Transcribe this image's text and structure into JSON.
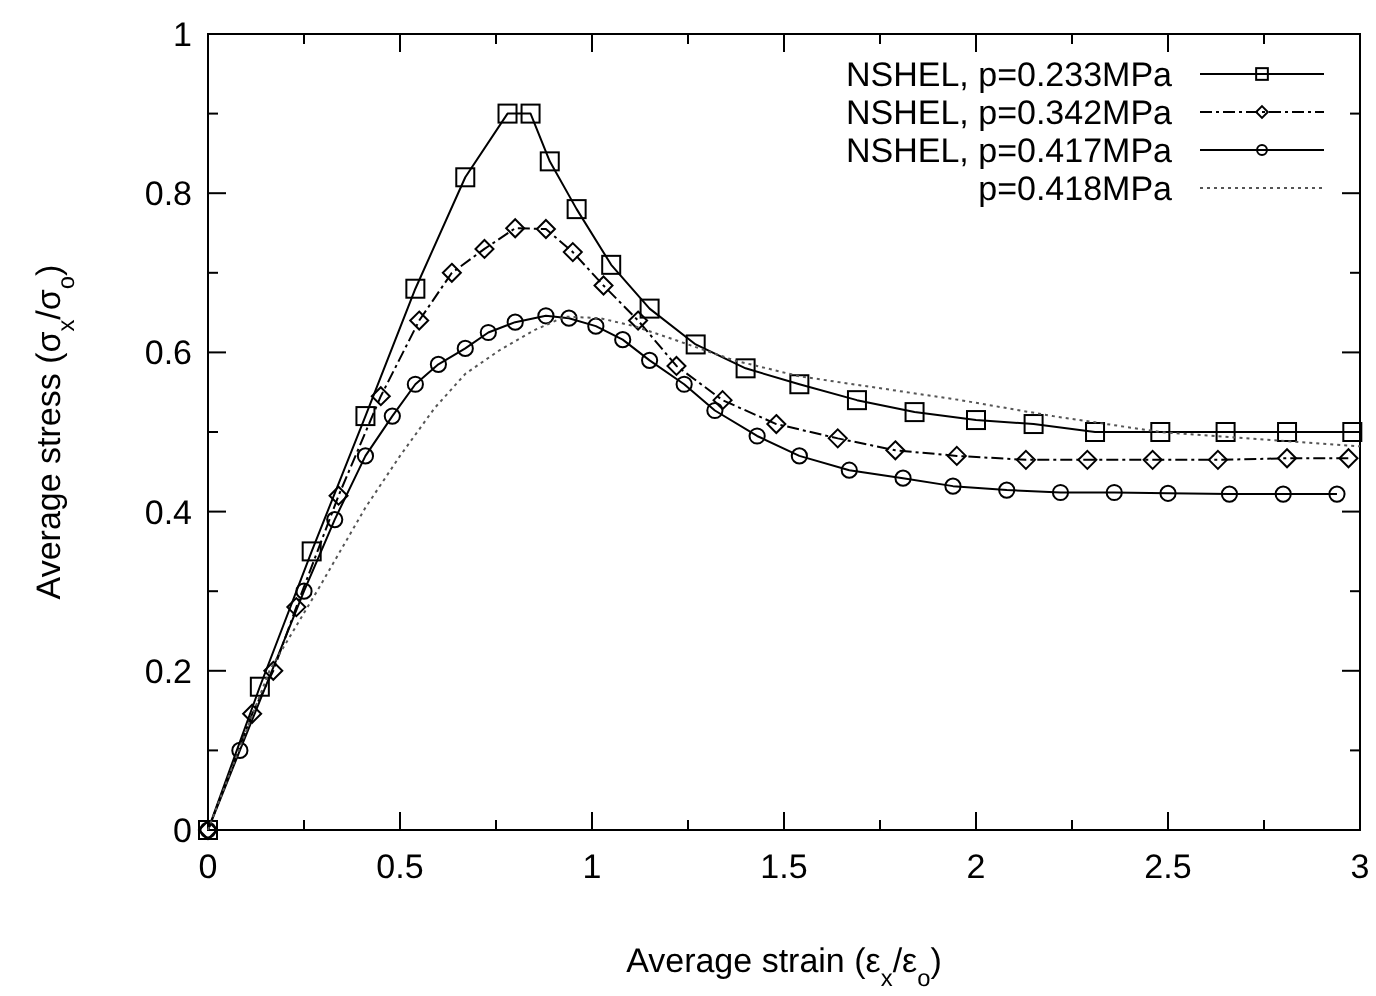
{
  "chart_data": {
    "type": "line",
    "xlabel": "Average strain (ε$_{x}$/ε$_{o}$)",
    "ylabel": "Average stress (σ$_{x}$/σ$_{o}$)",
    "xlim": [
      0,
      3
    ],
    "ylim": [
      0,
      1
    ],
    "xticks": [
      0,
      {
        "value": 0.25,
        "label": null
      },
      0.5,
      {
        "value": 0.75,
        "label": null
      },
      1,
      {
        "value": 1.25,
        "label": null
      },
      1.5,
      {
        "value": 1.75,
        "label": null
      },
      2,
      {
        "value": 2.25,
        "label": null
      },
      2.5,
      {
        "value": 2.75,
        "label": null
      },
      3
    ],
    "yticks": [
      0,
      {
        "value": 0.1,
        "label": null
      },
      0.2,
      {
        "value": 0.3,
        "label": null
      },
      0.4,
      {
        "value": 0.5,
        "label": null
      },
      0.6,
      {
        "value": 0.7,
        "label": null
      },
      0.8,
      {
        "value": 0.9,
        "label": null
      },
      1
    ],
    "grid": false,
    "legend": "top right",
    "series": [
      {
        "name": "NSHEL, p=0.233MPa",
        "color": "#000000",
        "marker": "square",
        "line_style": "solid",
        "x": [
          0,
          0.135,
          0.27,
          0.41,
          0.54,
          0.67,
          0.78,
          0.84,
          0.89,
          0.96,
          1.05,
          1.15,
          1.27,
          1.4,
          1.54,
          1.69,
          1.84,
          2.0,
          2.15,
          2.31,
          2.48,
          2.65,
          2.81,
          2.98
        ],
        "values": [
          0,
          0.18,
          0.35,
          0.52,
          0.68,
          0.82,
          0.9,
          0.9,
          0.84,
          0.78,
          0.71,
          0.655,
          0.61,
          0.58,
          0.56,
          0.54,
          0.525,
          0.515,
          0.51,
          0.5,
          0.5,
          0.5,
          0.5,
          0.5
        ]
      },
      {
        "name": "NSHEL, p=0.342MPa",
        "color": "#000000",
        "marker": "diamond",
        "line_style": "dashdot",
        "x": [
          0,
          0.115,
          0.17,
          0.23,
          0.34,
          0.45,
          0.55,
          0.635,
          0.72,
          0.8,
          0.88,
          0.95,
          1.03,
          1.12,
          1.22,
          1.34,
          1.48,
          1.64,
          1.79,
          1.95,
          2.13,
          2.29,
          2.46,
          2.63,
          2.81,
          2.97
        ],
        "values": [
          0,
          0.146,
          0.2,
          0.28,
          0.42,
          0.545,
          0.64,
          0.7,
          0.73,
          0.756,
          0.755,
          0.726,
          0.684,
          0.64,
          0.583,
          0.54,
          0.51,
          0.492,
          0.477,
          0.47,
          0.465,
          0.465,
          0.465,
          0.465,
          0.467,
          0.467
        ]
      },
      {
        "name": "NSHEL, p=0.417MPa",
        "color": "#000000",
        "marker": "circle",
        "line_style": "solid",
        "x": [
          0,
          0.083,
          0.25,
          0.33,
          0.41,
          0.48,
          0.54,
          0.6,
          0.67,
          0.73,
          0.8,
          0.88,
          0.94,
          1.01,
          1.08,
          1.15,
          1.24,
          1.32,
          1.43,
          1.54,
          1.67,
          1.81,
          1.94,
          2.08,
          2.22,
          2.36,
          2.5,
          2.66,
          2.8,
          2.94
        ],
        "values": [
          0,
          0.1,
          0.3,
          0.39,
          0.47,
          0.52,
          0.56,
          0.585,
          0.605,
          0.625,
          0.638,
          0.646,
          0.643,
          0.633,
          0.616,
          0.59,
          0.56,
          0.527,
          0.495,
          0.47,
          0.452,
          0.442,
          0.432,
          0.427,
          0.424,
          0.424,
          0.423,
          0.422,
          0.422,
          0.422
        ]
      },
      {
        "name": "p=0.418MPa",
        "color": "#555555",
        "marker": "none",
        "line_style": "dotted",
        "x": [
          0,
          0.16,
          0.29,
          0.41,
          0.5,
          0.59,
          0.67,
          0.76,
          0.85,
          0.93,
          1.02,
          1.11,
          1.19,
          1.37,
          1.54,
          1.96,
          2.2,
          2.48,
          3.0
        ],
        "values": [
          0,
          0.2,
          0.305,
          0.405,
          0.47,
          0.53,
          0.573,
          0.603,
          0.628,
          0.645,
          0.643,
          0.633,
          0.62,
          0.59,
          0.57,
          0.54,
          0.52,
          0.5,
          0.482
        ]
      }
    ]
  }
}
